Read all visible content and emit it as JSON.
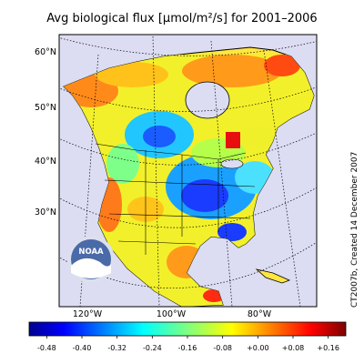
{
  "map": {
    "title": "Avg biological flux [μmol/m²/s] for 2001–2006",
    "credit": "CT2007b, Created 14 December 2007",
    "latitude_labels": [
      "60°N",
      "50°N",
      "40°N",
      "30°N"
    ],
    "longitude_labels": [
      "120°W",
      "100°W",
      "80°W"
    ],
    "logo_text": "NOAA",
    "colors": {
      "ocean": "#dcdcf2",
      "land_background": "#ffe640",
      "coastline": "#000000",
      "graticule": "#000000"
    }
  },
  "colorbar": {
    "tick_labels": [
      "-0.48",
      "-0.40",
      "-0.32",
      "-0.24",
      "-0.16",
      "-0.08",
      "+0.00",
      "+0.08",
      "+0.16"
    ],
    "range": [
      -0.52,
      0.2
    ],
    "stops": [
      "#00008f",
      "#0000ff",
      "#007fff",
      "#00ffff",
      "#7fff7f",
      "#ffff00",
      "#ff7f00",
      "#ff0000",
      "#7f0000"
    ]
  }
}
